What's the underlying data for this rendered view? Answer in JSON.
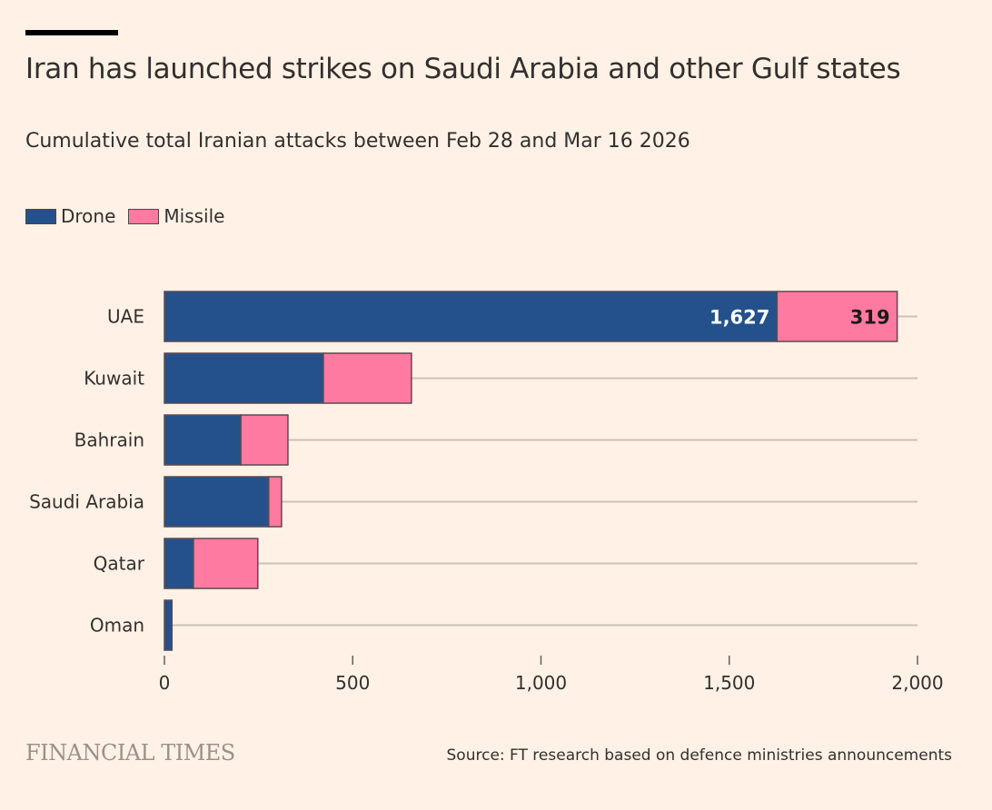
{
  "header": {
    "title": "Iran has launched strikes on Saudi Arabia and other Gulf states",
    "subtitle": "Cumulative total Iranian attacks between Feb 28 and Mar 16 2026"
  },
  "footer": {
    "logo": "FINANCIAL TIMES",
    "source": "Source: FT research based on defence ministries announcements"
  },
  "chart_data": {
    "type": "bar",
    "orientation": "horizontal",
    "stacked": true,
    "categories": [
      "UAE",
      "Kuwait",
      "Bahrain",
      "Saudi Arabia",
      "Qatar",
      "Oman"
    ],
    "series": [
      {
        "name": "Drone",
        "color": "#24518b",
        "values": [
          1627,
          422,
          203,
          277,
          77,
          20
        ]
      },
      {
        "name": "Missile",
        "color": "#ff7aa0",
        "values": [
          319,
          234,
          125,
          34,
          171,
          0
        ]
      }
    ],
    "data_labels": [
      {
        "category": "UAE",
        "series": "Drone",
        "text": "1,627"
      },
      {
        "category": "UAE",
        "series": "Missile",
        "text": "319"
      }
    ],
    "xlim": [
      0,
      2000
    ],
    "xticks": [
      0,
      500,
      1000,
      1500,
      2000
    ],
    "xtick_labels": [
      "0",
      "500",
      "1,000",
      "1,500",
      "2,000"
    ],
    "legend_position": "top-left",
    "grid": "horizontal row guide lines"
  }
}
